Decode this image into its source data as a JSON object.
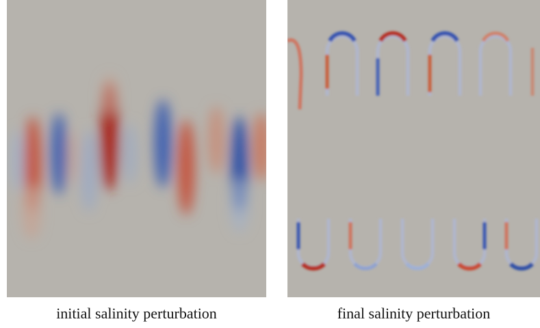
{
  "panels": [
    {
      "caption": "initial salinity perturbation"
    },
    {
      "caption": "final salinity perturbation"
    }
  ]
}
